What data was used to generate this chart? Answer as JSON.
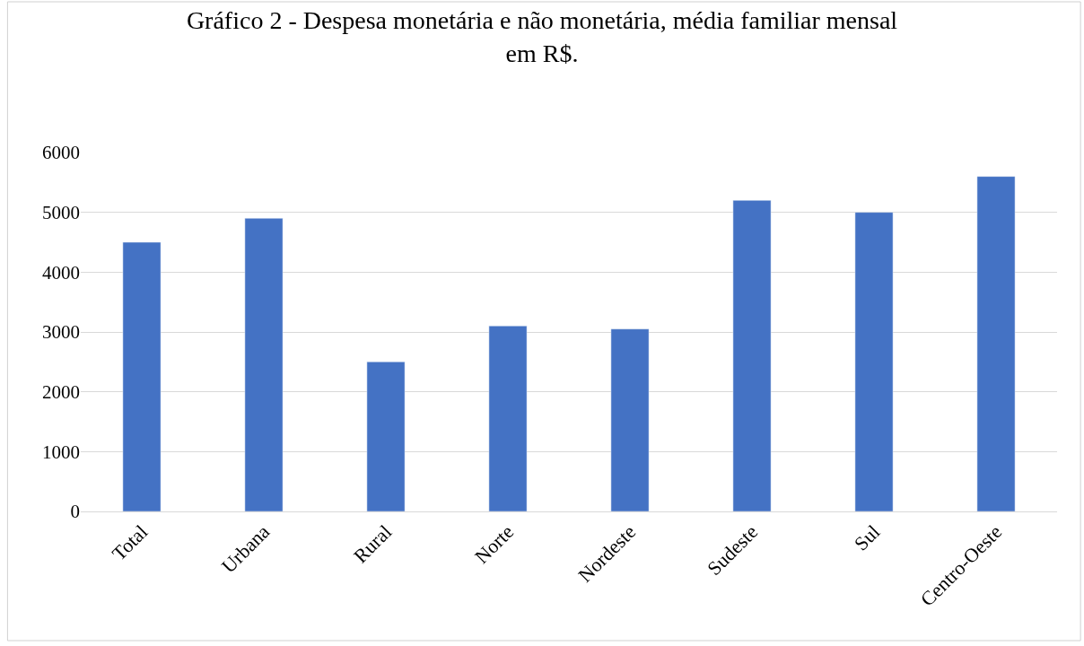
{
  "chart_data": {
    "type": "bar",
    "title": "Gráfico 2 - Despesa monetária e não monetária, média familiar mensal\nem R$.",
    "categories": [
      "Total",
      "Urbana",
      "Rural",
      "Norte",
      "Nordeste",
      "Sudeste",
      "Sul",
      "Centro-Oeste"
    ],
    "values": [
      4500,
      4900,
      2500,
      3100,
      3050,
      5200,
      5000,
      5600
    ],
    "color": "#4472c4",
    "ylim": [
      0,
      6000
    ],
    "yticks": [
      0,
      1000,
      2000,
      3000,
      4000,
      5000,
      6000
    ],
    "grid": "y"
  }
}
